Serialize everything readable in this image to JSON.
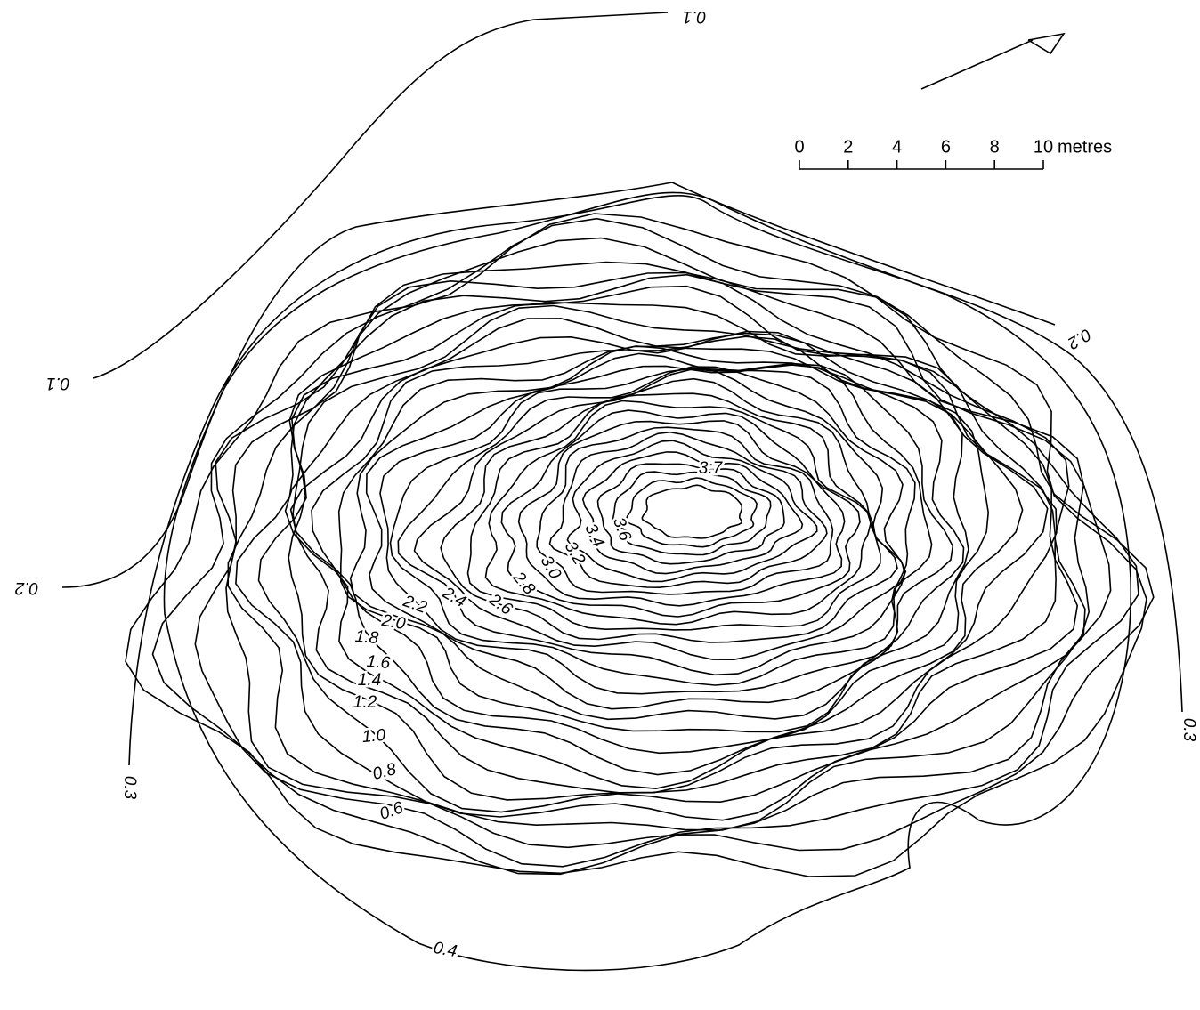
{
  "scale_bar": {
    "ticks": [
      0,
      2,
      4,
      6,
      8,
      10
    ],
    "unit": "metres"
  },
  "contour_labels": [
    "0.1",
    "0.1",
    "0.2",
    "0.2",
    "0.3",
    "0.3",
    "0.4",
    "0.6",
    "0.8",
    "1.0",
    "1.2",
    "1.4",
    "1.6",
    "1.8",
    "2.0",
    "2.2",
    "2.4",
    "2.6",
    "2.8",
    "3.0",
    "3.2",
    "3.4",
    "3.6",
    "3.7"
  ]
}
